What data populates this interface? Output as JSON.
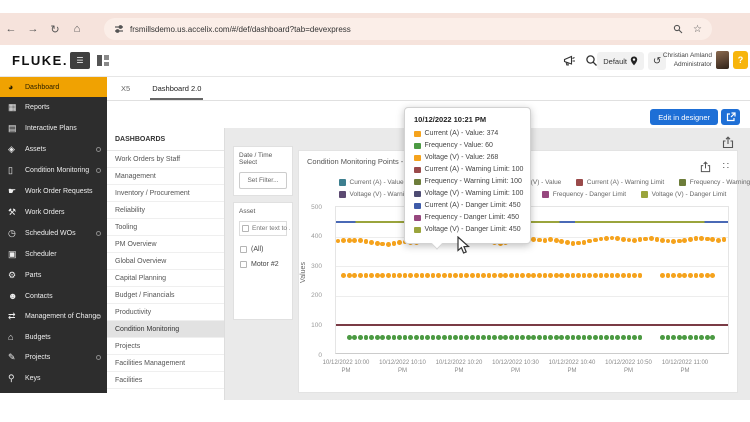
{
  "browser": {
    "url": "frsmillsdemo.us.accelix.com/#/def/dashboard?tab=devexpress"
  },
  "header": {
    "logo": "FLUKE",
    "logo_dot": ".",
    "location_label": "Default",
    "user_name": "Christian Amland",
    "user_role": "Administrator",
    "help_label": "?"
  },
  "tabs": [
    {
      "label": "X5",
      "active": false
    },
    {
      "label": "Dashboard 2.0",
      "active": true
    }
  ],
  "actions": {
    "edit_button": "Edit in designer"
  },
  "sidebar": {
    "active_color": "#f0a202",
    "items": [
      {
        "label": "Dashboard",
        "icon": "◕",
        "active": true,
        "chevron": false
      },
      {
        "label": "Reports",
        "icon": "▦",
        "active": false,
        "chevron": false
      },
      {
        "label": "Interactive Plans",
        "icon": "▤",
        "active": false,
        "chevron": false
      },
      {
        "label": "Assets",
        "icon": "◈",
        "active": false,
        "chevron": true
      },
      {
        "label": "Condition Monitoring",
        "icon": "▯",
        "active": false,
        "chevron": true
      },
      {
        "label": "Work Order Requests",
        "icon": "☛",
        "active": false,
        "chevron": false
      },
      {
        "label": "Work Orders",
        "icon": "⚒",
        "active": false,
        "chevron": false
      },
      {
        "label": "Scheduled WOs",
        "icon": "◷",
        "active": false,
        "chevron": true
      },
      {
        "label": "Scheduler",
        "icon": "▣",
        "active": false,
        "chevron": false
      },
      {
        "label": "Parts",
        "icon": "⚙",
        "active": false,
        "chevron": false
      },
      {
        "label": "Contacts",
        "icon": "☻",
        "active": false,
        "chevron": false
      },
      {
        "label": "Management of Change",
        "icon": "⇄",
        "active": false,
        "chevron": true
      },
      {
        "label": "Budgets",
        "icon": "⌂",
        "active": false,
        "chevron": false
      },
      {
        "label": "Projects",
        "icon": "✎",
        "active": false,
        "chevron": true
      },
      {
        "label": "Keys",
        "icon": "⚲",
        "active": false,
        "chevron": false
      }
    ]
  },
  "dashboards_panel": {
    "title": "DASHBOARDS",
    "selected": "Condition Monitoring",
    "items": [
      "Work Orders by Staff",
      "Management",
      "Inventory / Procurement",
      "Reliability",
      "Tooling",
      "PM Overview",
      "Global Overview",
      "Capital Planning",
      "Budget / Financials",
      "Productivity",
      "Condition Monitoring",
      "Projects",
      "Facilities Management",
      "Facilities"
    ]
  },
  "filters": {
    "datetime_title": "Date / Time Select",
    "set_filter_button": "Set Filter...",
    "asset_title": "Asset",
    "search_placeholder": "Enter text to ...",
    "options": [
      "(All)",
      "Motor #2"
    ]
  },
  "chart_data": {
    "type": "scatter",
    "title": "Condition Monitoring Points - Motor #2",
    "ylabel": "Values",
    "ylim": [
      0,
      500
    ],
    "yticks": [
      0,
      100,
      200,
      300,
      400,
      500
    ],
    "x_labels": [
      "10/12/2022 10:00 PM",
      "10/12/2022 10:10 PM",
      "10/12/2022 10:20 PM",
      "10/12/2022 10:30 PM",
      "10/12/2022 10:40 PM",
      "10/12/2022 10:50 PM",
      "10/12/2022 11:00 PM"
    ],
    "legend_rows": [
      [
        {
          "color": "#3d7f8f",
          "label": "Current (A) - Value"
        },
        {
          "color": "#4c9a43",
          "label": "Frequency - Value"
        },
        {
          "color": "#f5a31d",
          "label": "Voltage (V) - Value"
        },
        {
          "color": "#9a4a4a",
          "label": "Current (A) - Warning Limit"
        },
        {
          "color": "#6d7d3a",
          "label": "Frequency - Warning Limit"
        }
      ],
      [
        {
          "color": "#5c4a72",
          "label": "Voltage (V) - Warning Limit"
        },
        {
          "color": "#3e5ba9",
          "label": "Current (A) - Danger Limit"
        },
        {
          "color": "#96477e",
          "label": "Frequency - Danger Limit"
        },
        {
          "color": "#9aa43c",
          "label": "Voltage (V) - Danger Limit"
        }
      ]
    ],
    "series": [
      {
        "name": "Current (A) - Value",
        "color": "#f5a31d",
        "marker": "dot",
        "values": [
          385,
          387,
          388,
          388,
          386,
          383,
          380,
          377,
          375,
          374,
          377,
          380,
          382,
          381,
          379,
          382,
          385,
          388,
          390,
          391,
          390,
          389,
          390,
          391,
          390,
          388,
          385,
          382,
          379,
          377,
          380,
          384,
          388,
          390,
          391,
          390,
          389,
          388,
          390,
          387,
          383,
          379,
          376,
          378,
          381,
          385,
          389,
          392,
          394,
          395,
          393,
          391,
          389,
          388,
          390,
          392,
          393,
          391,
          388,
          385,
          383,
          385,
          388,
          391,
          393,
          394,
          392,
          390,
          388,
          391
        ]
      },
      {
        "name": "Voltage (V) - Value",
        "color": "#f5a31d",
        "marker": "dot",
        "constant": 268,
        "start": 1,
        "end": 67,
        "gap_start": 55,
        "gap_end": 57
      },
      {
        "name": "Frequency - Value",
        "color": "#4c9a43",
        "marker": "dot",
        "constant": 60,
        "start": 2,
        "end": 67,
        "gap_start": 55,
        "gap_end": 57
      },
      {
        "name": "Danger Limit",
        "type": "line",
        "constant": 450,
        "colors": [
          "#4a69b5",
          "#9aa43c"
        ]
      },
      {
        "name": "Warning Limit",
        "type": "line",
        "constant": 100,
        "colors": [
          "#7a3b45",
          "#7a3b45"
        ]
      }
    ]
  },
  "tooltip": {
    "title": "10/12/2022 10:21 PM",
    "rows": [
      {
        "color": "#f5a31d",
        "label": "Current (A) - Value: 374"
      },
      {
        "color": "#4c9a43",
        "label": "Frequency - Value: 60"
      },
      {
        "color": "#f5a31d",
        "label": "Voltage (V) - Value: 268"
      },
      {
        "color": "#9a4a4a",
        "label": "Current (A) - Warning Limit: 100"
      },
      {
        "color": "#6d7d3a",
        "label": "Frequency - Warning Limit: 100"
      },
      {
        "color": "#4d4b72",
        "label": "Voltage (V) - Warning Limit: 100"
      },
      {
        "color": "#3e5ba9",
        "label": "Current (A) - Danger Limit: 450"
      },
      {
        "color": "#96477e",
        "label": "Frequency - Danger Limit: 450"
      },
      {
        "color": "#9aa43c",
        "label": "Voltage (V) - Danger Limit: 450"
      }
    ]
  }
}
